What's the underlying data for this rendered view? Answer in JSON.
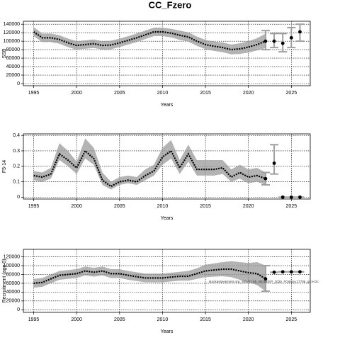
{
  "title": "CC_Fzero",
  "chart_data": [
    {
      "type": "line",
      "x_label": "Years",
      "y_label": "SSB",
      "xlim": [
        1993.8,
        2027.2
      ],
      "xticks": [
        1995,
        2000,
        2005,
        2010,
        2015,
        2020,
        2025
      ],
      "ylim": [
        -5000,
        147000
      ],
      "yticks": [
        0,
        20000,
        40000,
        60000,
        80000,
        100000,
        120000,
        140000
      ],
      "grid": true,
      "x": [
        1995,
        1996,
        1997,
        1998,
        1999,
        2000,
        2001,
        2002,
        2003,
        2004,
        2005,
        2006,
        2007,
        2008,
        2009,
        2010,
        2011,
        2012,
        2013,
        2014,
        2015,
        2016,
        2017,
        2018,
        2019,
        2020,
        2021,
        2022
      ],
      "series": [
        {
          "color": "#000000",
          "values": [
            122000,
            108000,
            108000,
            104000,
            96000,
            90000,
            92000,
            94000,
            90000,
            91000,
            96000,
            102000,
            108000,
            115000,
            122000,
            122000,
            119000,
            114000,
            110000,
            100000,
            92000,
            88000,
            85000,
            80000,
            82000,
            86000,
            92000,
            100000
          ],
          "lower": [
            112000,
            98000,
            98000,
            94000,
            86000,
            80000,
            82000,
            84000,
            80000,
            81000,
            86000,
            92000,
            98000,
            105000,
            112000,
            112000,
            109000,
            103000,
            99000,
            89000,
            81000,
            77000,
            74000,
            69000,
            70000,
            73000,
            78000,
            84000
          ],
          "upper": [
            133000,
            118000,
            118000,
            114000,
            106000,
            100000,
            102000,
            104000,
            100000,
            101000,
            106000,
            112000,
            118000,
            125000,
            132000,
            132000,
            129000,
            125000,
            121000,
            111000,
            103000,
            99000,
            97000,
            92000,
            95000,
            100000,
            107000,
            118000
          ]
        }
      ],
      "projection": {
        "x": [
          2022,
          2023,
          2024,
          2025,
          2026
        ],
        "values": [
          100000,
          100000,
          95000,
          108000,
          122000
        ],
        "lower": [
          80000,
          85000,
          75000,
          85000,
          100000
        ],
        "upper": [
          125000,
          118000,
          118000,
          132000,
          140000
        ]
      }
    },
    {
      "type": "line",
      "x_label": "Years",
      "y_label": "F5-14",
      "xlim": [
        1993.8,
        2027.2
      ],
      "xticks": [
        1995,
        2000,
        2005,
        2010,
        2015,
        2020,
        2025
      ],
      "ylim": [
        -0.012,
        0.41
      ],
      "yticks": [
        0,
        0.1,
        0.2,
        0.3,
        0.4
      ],
      "grid": true,
      "x": [
        1995,
        1996,
        1997,
        1998,
        1999,
        2000,
        2001,
        2002,
        2003,
        2004,
        2005,
        2006,
        2007,
        2008,
        2009,
        2010,
        2011,
        2012,
        2013,
        2014,
        2015,
        2016,
        2017,
        2018,
        2019,
        2020,
        2021,
        2022
      ],
      "series": [
        {
          "color": "#000000",
          "values": [
            0.14,
            0.13,
            0.15,
            0.28,
            0.24,
            0.19,
            0.3,
            0.25,
            0.11,
            0.07,
            0.1,
            0.11,
            0.1,
            0.14,
            0.17,
            0.26,
            0.3,
            0.19,
            0.28,
            0.18,
            0.18,
            0.18,
            0.19,
            0.13,
            0.16,
            0.13,
            0.14,
            0.12
          ],
          "lower": [
            0.11,
            0.1,
            0.12,
            0.24,
            0.2,
            0.15,
            0.25,
            0.21,
            0.08,
            0.05,
            0.08,
            0.09,
            0.08,
            0.11,
            0.14,
            0.21,
            0.25,
            0.15,
            0.23,
            0.14,
            0.14,
            0.14,
            0.15,
            0.1,
            0.12,
            0.09,
            0.1,
            0.08
          ],
          "upper": [
            0.17,
            0.16,
            0.19,
            0.35,
            0.3,
            0.23,
            0.38,
            0.32,
            0.16,
            0.1,
            0.13,
            0.14,
            0.13,
            0.18,
            0.21,
            0.32,
            0.37,
            0.24,
            0.34,
            0.24,
            0.24,
            0.24,
            0.24,
            0.18,
            0.21,
            0.18,
            0.19,
            0.16
          ]
        }
      ],
      "projection": {
        "x": [
          2022,
          2023,
          2024,
          2025,
          2026
        ],
        "values": [
          0.12,
          0.22,
          0,
          0,
          0
        ],
        "lower": [
          0.08,
          0.15,
          0,
          0,
          0
        ],
        "upper": [
          0.16,
          0.34,
          0,
          0,
          0
        ]
      }
    },
    {
      "type": "line",
      "x_label": "Years",
      "y_label": "Recruitment (age 0)",
      "annotation": "stockassessment.org, SBL/27.6b_WGDEEP_2025_FOdata r17706, git:ec2c",
      "xlim": [
        1993.8,
        2027.2
      ],
      "xticks": [
        1995,
        2000,
        2005,
        2010,
        2015,
        2020,
        2025
      ],
      "ylim": [
        -6000,
        137000
      ],
      "yticks": [
        0,
        20000,
        40000,
        60000,
        80000,
        100000,
        120000
      ],
      "grid": true,
      "x": [
        1995,
        1996,
        1997,
        1998,
        1999,
        2000,
        2001,
        2002,
        2003,
        2004,
        2005,
        2006,
        2007,
        2008,
        2009,
        2010,
        2011,
        2012,
        2013,
        2014,
        2015,
        2016,
        2017,
        2018,
        2019,
        2020,
        2021,
        2022
      ],
      "series": [
        {
          "color": "#000000",
          "values": [
            60000,
            62000,
            70000,
            78000,
            80000,
            82000,
            88000,
            85000,
            88000,
            82000,
            82000,
            78000,
            75000,
            72000,
            72000,
            72000,
            74000,
            76000,
            76000,
            82000,
            88000,
            90000,
            92000,
            92000,
            88000,
            84000,
            82000,
            70000
          ],
          "lower": [
            50000,
            52000,
            60000,
            68000,
            70000,
            72000,
            78000,
            75000,
            78000,
            72000,
            72000,
            68000,
            65000,
            62000,
            62000,
            62000,
            64000,
            66000,
            66000,
            70000,
            74000,
            75000,
            76000,
            74000,
            68000,
            62000,
            56000,
            42000
          ],
          "upper": [
            70000,
            72000,
            80000,
            88000,
            90000,
            92000,
            98000,
            95000,
            98000,
            92000,
            92000,
            88000,
            85000,
            82000,
            82000,
            82000,
            84000,
            86000,
            88000,
            94000,
            102000,
            105000,
            108000,
            110000,
            108000,
            106000,
            108000,
            100000
          ]
        }
      ],
      "projection": {
        "x": [
          2022,
          2023,
          2024,
          2025,
          2026
        ],
        "values": [
          70000,
          85000,
          86000,
          86000,
          86000
        ],
        "lower": [
          42000,
          85000,
          86000,
          86000,
          86000
        ],
        "upper": [
          100000,
          85000,
          86000,
          86000,
          86000
        ]
      }
    }
  ]
}
